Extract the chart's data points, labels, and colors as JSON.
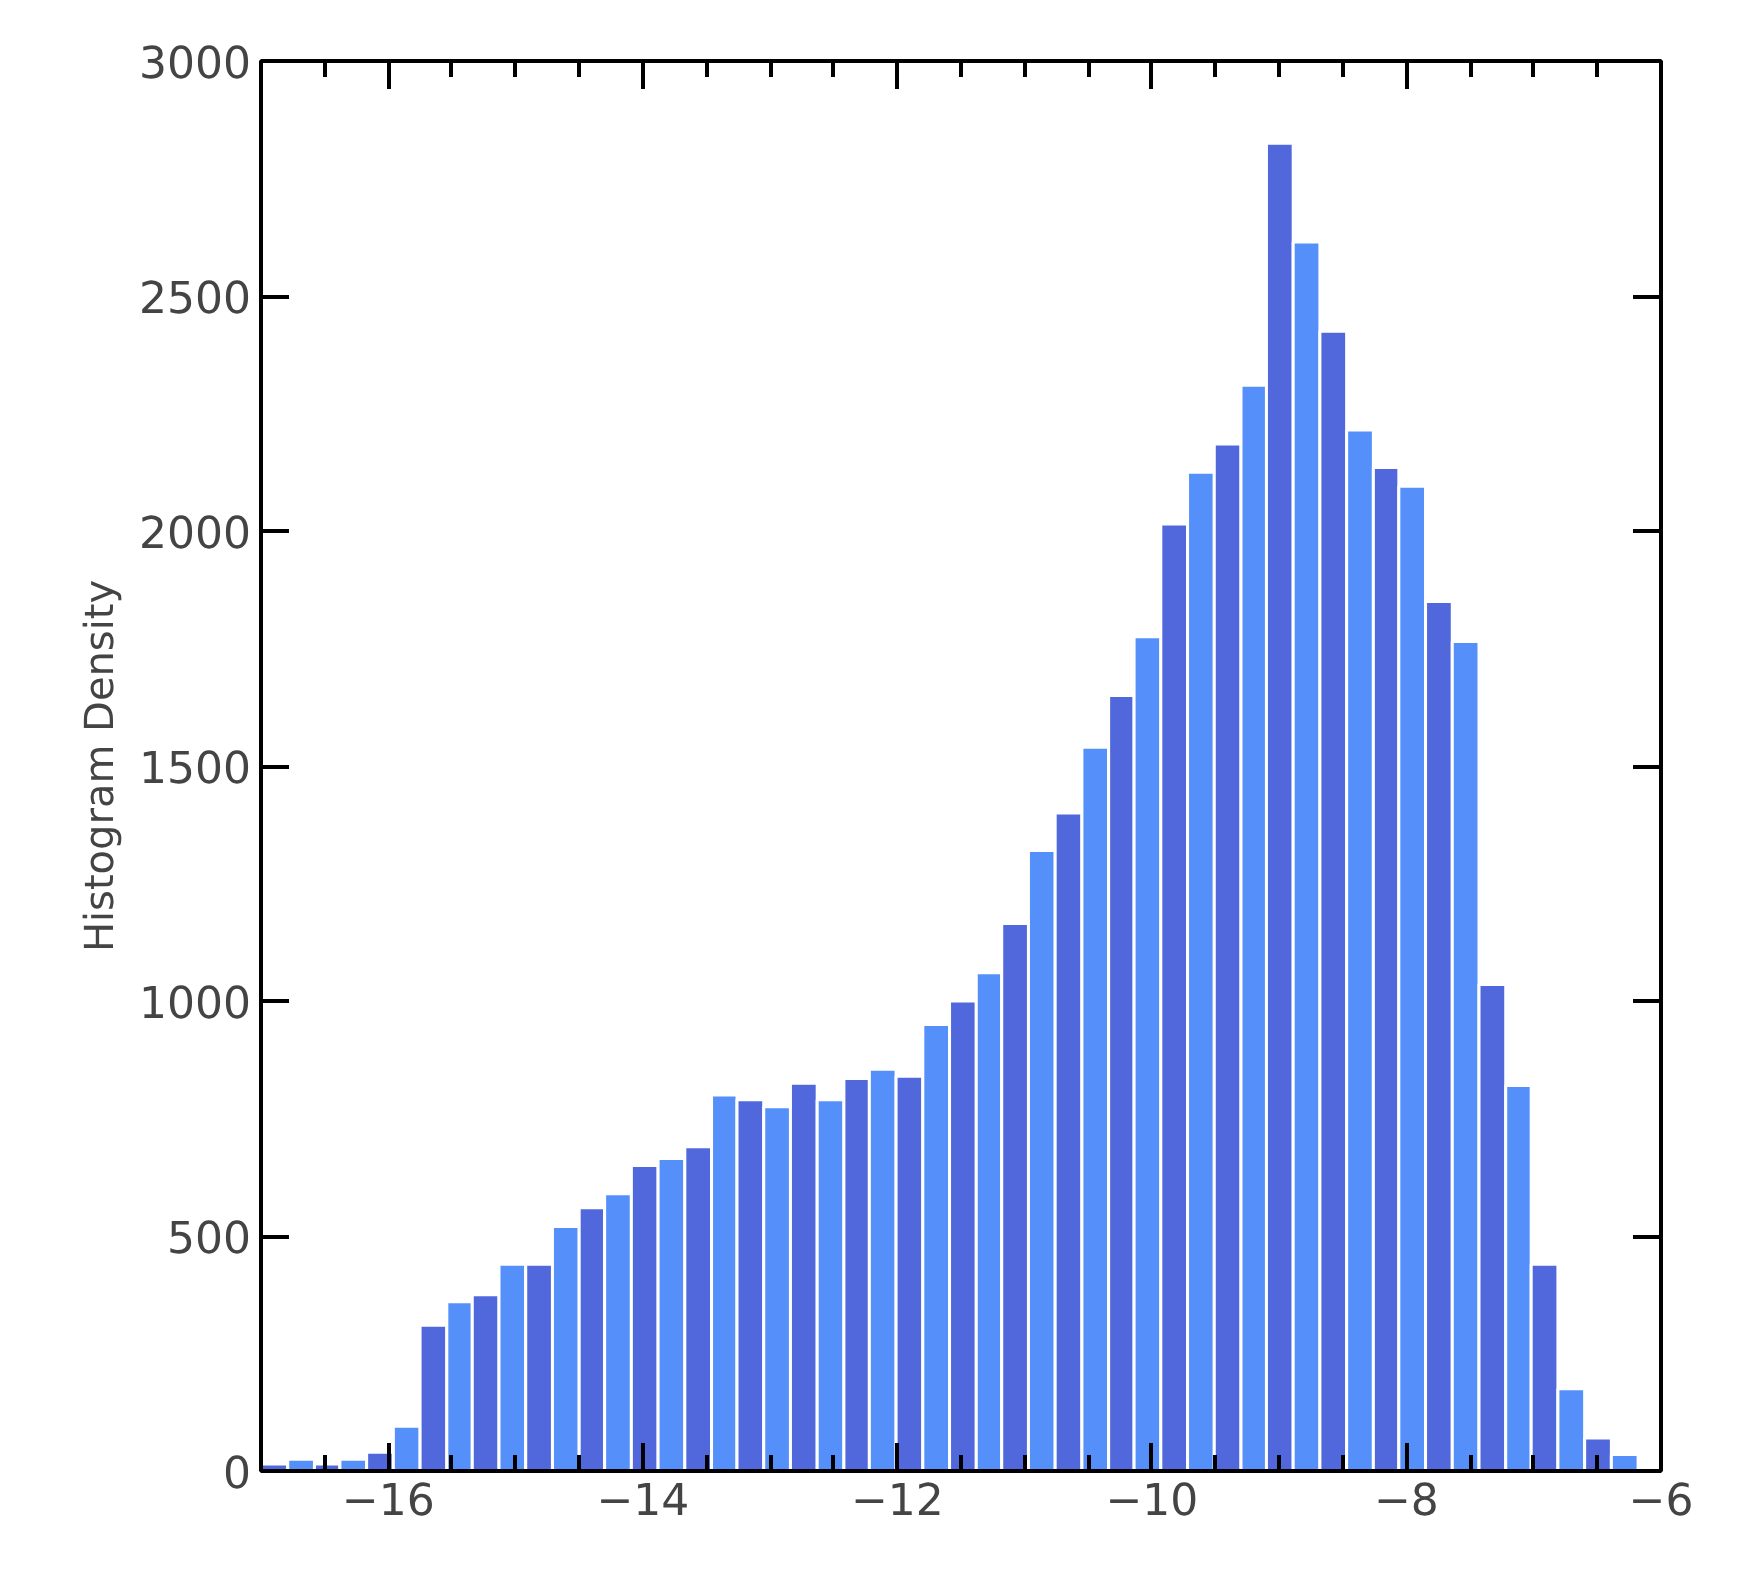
{
  "chart_data": {
    "type": "histogram",
    "ylabel": "Histogram Density",
    "bins": [
      -17.0,
      -16.79,
      -16.58,
      -16.38,
      -16.17,
      -15.96,
      -15.75,
      -15.54,
      -15.34,
      -15.13,
      -14.92,
      -14.71,
      -14.5,
      -14.3,
      -14.09,
      -13.88,
      -13.67,
      -13.46,
      -13.26,
      -13.05,
      -12.84,
      -12.63,
      -12.42,
      -12.22,
      -12.01,
      -11.8,
      -11.59,
      -11.38,
      -11.18,
      -10.97,
      -10.76,
      -10.55,
      -10.34,
      -10.14,
      -9.93,
      -9.72,
      -9.51,
      -9.3,
      -9.1,
      -8.89,
      -8.68,
      -8.47,
      -8.26,
      -8.06,
      -7.85,
      -7.64,
      -7.43,
      -7.22,
      -7.02,
      -6.81,
      -6.6,
      -6.39,
      -6.18
    ],
    "values": [
      15,
      25,
      15,
      25,
      40,
      95,
      310,
      360,
      375,
      440,
      440,
      520,
      560,
      590,
      650,
      665,
      690,
      800,
      790,
      775,
      825,
      790,
      835,
      855,
      840,
      950,
      1000,
      1060,
      1165,
      1320,
      1400,
      1540,
      1650,
      1775,
      2015,
      2125,
      2185,
      2310,
      2825,
      2615,
      2425,
      2215,
      2135,
      2095,
      1850,
      1765,
      1035,
      820,
      440,
      175,
      70,
      35
    ],
    "colors": [
      "#5068dc",
      "#5590fa",
      "#5068dc",
      "#5590fa",
      "#5068dc",
      "#5590fa",
      "#5068dc",
      "#5590fa",
      "#5068dc",
      "#5590fa",
      "#5068dc",
      "#5590fa",
      "#5068dc",
      "#5590fa",
      "#5068dc",
      "#5590fa",
      "#5068dc",
      "#5590fa",
      "#5068dc",
      "#5590fa",
      "#5068dc",
      "#5590fa",
      "#5068dc",
      "#5590fa",
      "#5068dc",
      "#5590fa",
      "#5068dc",
      "#5590fa",
      "#5068dc",
      "#5590fa",
      "#5068dc",
      "#5590fa",
      "#5068dc",
      "#5590fa",
      "#5068dc",
      "#5590fa",
      "#5068dc",
      "#5590fa",
      "#5068dc",
      "#5590fa",
      "#5068dc",
      "#5590fa",
      "#5068dc",
      "#5590fa",
      "#5068dc",
      "#5590fa",
      "#5068dc",
      "#5590fa",
      "#5068dc",
      "#5590fa",
      "#5068dc",
      "#5590fa"
    ],
    "xlim": [
      -17,
      -6
    ],
    "ylim": [
      0,
      3000
    ],
    "xticks": [
      {
        "value": -16.5,
        "label": null
      },
      {
        "value": -16,
        "label": "−16"
      },
      {
        "value": -15.5,
        "label": null
      },
      {
        "value": -15,
        "label": null
      },
      {
        "value": -14.5,
        "label": null
      },
      {
        "value": -14,
        "label": "−14"
      },
      {
        "value": -13.5,
        "label": null
      },
      {
        "value": -13,
        "label": null
      },
      {
        "value": -12.5,
        "label": null
      },
      {
        "value": -12,
        "label": "−12"
      },
      {
        "value": -11.5,
        "label": null
      },
      {
        "value": -11,
        "label": null
      },
      {
        "value": -10.5,
        "label": null
      },
      {
        "value": -10,
        "label": "−10"
      },
      {
        "value": -9.5,
        "label": null
      },
      {
        "value": -9,
        "label": null
      },
      {
        "value": -8.5,
        "label": null
      },
      {
        "value": -8,
        "label": "−8"
      },
      {
        "value": -7.5,
        "label": null
      },
      {
        "value": -7,
        "label": null
      },
      {
        "value": -6.5,
        "label": null
      },
      {
        "value": -6,
        "label": "−6"
      }
    ],
    "yticks": [
      0,
      500,
      1000,
      1500,
      2000,
      2500,
      3000
    ],
    "grid": false
  }
}
